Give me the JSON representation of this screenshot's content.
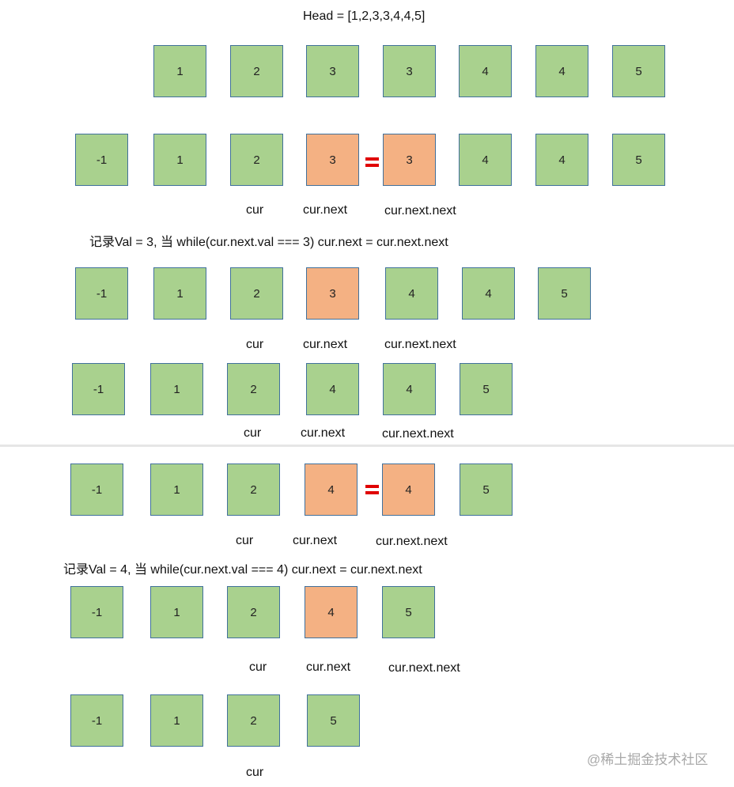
{
  "title": "Head = [1,2,3,3,4,4,5]",
  "rows": [
    {
      "values": [
        "1",
        "2",
        "3",
        "3",
        "4",
        "4",
        "5"
      ],
      "highlight": [],
      "equal_between": null
    },
    {
      "values": [
        "-1",
        "1",
        "2",
        "3",
        "3",
        "4",
        "4",
        "5"
      ],
      "highlight": [
        3,
        4
      ],
      "equal_between": [
        3,
        4
      ]
    },
    {
      "values": [
        "-1",
        "1",
        "2",
        "3",
        "4",
        "4",
        "5"
      ],
      "highlight": [
        3
      ],
      "equal_between": null
    },
    {
      "values": [
        "-1",
        "1",
        "2",
        "4",
        "4",
        "5"
      ],
      "highlight": [],
      "equal_between": null
    },
    {
      "values": [
        "-1",
        "1",
        "2",
        "4",
        "4",
        "5"
      ],
      "highlight": [
        3,
        4
      ],
      "equal_between": [
        3,
        4
      ]
    },
    {
      "values": [
        "-1",
        "1",
        "2",
        "4",
        "5"
      ],
      "highlight": [
        3
      ],
      "equal_between": null
    },
    {
      "values": [
        "-1",
        "1",
        "2",
        "5"
      ],
      "highlight": [],
      "equal_between": null
    }
  ],
  "labels": {
    "cur": "cur",
    "cur_next": "cur.next",
    "cur_next_next": "cur.next.next"
  },
  "notes": [
    "记录Val = 3,  当 while(cur.next.val === 3)  cur.next = cur.next.next",
    "记录Val = 4,  当 while(cur.next.val === 4)  cur.next = cur.next.next"
  ],
  "watermark": "@稀土掘金技术社区"
}
